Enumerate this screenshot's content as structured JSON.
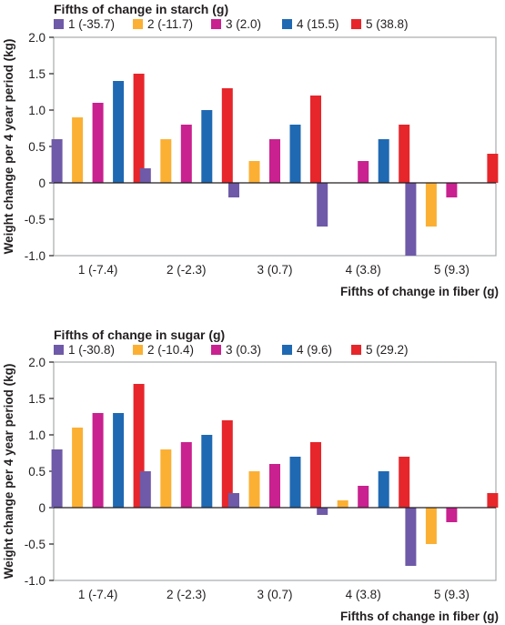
{
  "ylabel": "Weight change per 4 year period (kg)",
  "chart_data": [
    {
      "type": "bar",
      "legend_title": "Fifths of change in starch (g)",
      "xlabel": "Fifths of change in fiber (g)",
      "ylabel": "Weight change per 4 year period (kg)",
      "ylim": [
        -1.0,
        2.0
      ],
      "yticks": [
        "2.0",
        "1.5",
        "1.0",
        "0.5",
        "0",
        "-0.5",
        "-1.0"
      ],
      "categories": [
        "1 (-7.4)",
        "2 (-2.3)",
        "3 (0.7)",
        "4 (3.8)",
        "5 (9.3)"
      ],
      "legend_placement": "top",
      "grid": false,
      "series": [
        {
          "name": "1 (-35.7)",
          "color": "#6e5aa8",
          "values": [
            0.6,
            0.2,
            -0.2,
            -0.6,
            -1.0
          ]
        },
        {
          "name": "2 (-11.7)",
          "color": "#fbb034",
          "values": [
            0.9,
            0.6,
            0.3,
            0.0,
            -0.6
          ]
        },
        {
          "name": "3 (2.0)",
          "color": "#c9218f",
          "values": [
            1.1,
            0.8,
            0.6,
            0.3,
            -0.2
          ]
        },
        {
          "name": "4 (15.5)",
          "color": "#1f69b3",
          "values": [
            1.4,
            1.0,
            0.8,
            0.6,
            0.0
          ]
        },
        {
          "name": "5 (38.8)",
          "color": "#e6262b",
          "values": [
            1.5,
            1.3,
            1.2,
            0.8,
            0.4
          ]
        }
      ]
    },
    {
      "type": "bar",
      "legend_title": "Fifths of change in sugar (g)",
      "xlabel": "Fifths of change in fiber (g)",
      "ylabel": "Weight change per 4 year period (kg)",
      "ylim": [
        -1.0,
        2.0
      ],
      "yticks": [
        "2.0",
        "1.5",
        "1.0",
        "0.5",
        "0",
        "-0.5",
        "-1.0"
      ],
      "categories": [
        "1 (-7.4)",
        "2 (-2.3)",
        "3 (0.7)",
        "4 (3.8)",
        "5 (9.3)"
      ],
      "legend_placement": "top",
      "grid": false,
      "series": [
        {
          "name": "1 (-30.8)",
          "color": "#6e5aa8",
          "values": [
            0.8,
            0.5,
            0.2,
            -0.1,
            -0.8
          ]
        },
        {
          "name": "2 (-10.4)",
          "color": "#fbb034",
          "values": [
            1.1,
            0.8,
            0.5,
            0.1,
            -0.5
          ]
        },
        {
          "name": "3 (0.3)",
          "color": "#c9218f",
          "values": [
            1.3,
            0.9,
            0.6,
            0.3,
            -0.2
          ]
        },
        {
          "name": "4 (9.6)",
          "color": "#1f69b3",
          "values": [
            1.3,
            1.0,
            0.7,
            0.5,
            0.0
          ]
        },
        {
          "name": "5 (29.2)",
          "color": "#e6262b",
          "values": [
            1.7,
            1.2,
            0.9,
            0.7,
            0.2
          ]
        }
      ]
    }
  ]
}
